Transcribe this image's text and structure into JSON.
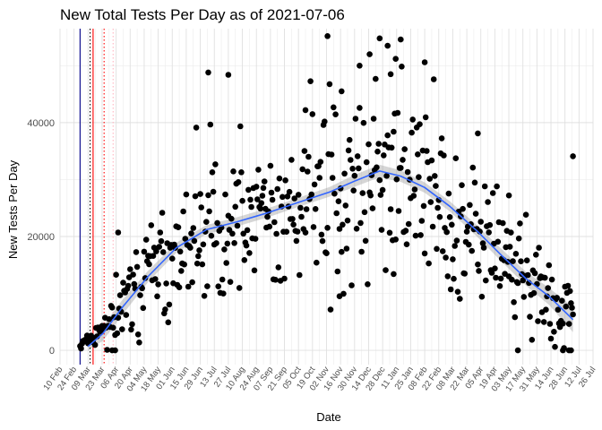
{
  "chart_data": {
    "type": "scatter",
    "title": "New Total Tests Per Day as of 2021-07-06",
    "xlabel": "Date",
    "ylabel": "New Tests Per Day",
    "xlim": [
      "2020-02-10",
      "2021-07-26"
    ],
    "ylim": [
      -2500,
      56500
    ],
    "y_ticks": [
      0,
      20000,
      40000
    ],
    "y_tick_labels": [
      "0",
      "20000",
      "40000"
    ],
    "x_tick_labels": [
      "10 Feb",
      "24 Feb",
      "09 Mar",
      "23 Mar",
      "06 Apr",
      "20 Apr",
      "04 May",
      "18 May",
      "01 Jun",
      "15 Jun",
      "29 Jun",
      "13 Jul",
      "27 Jul",
      "10 Aug",
      "24 Aug",
      "07 Sep",
      "21 Sep",
      "05 Oct",
      "19 Oct",
      "02 Nov",
      "16 Nov",
      "30 Nov",
      "14 Dec",
      "28 Dec",
      "11 Jan",
      "25 Jan",
      "08 Feb",
      "22 Feb",
      "08 Mar",
      "22 Mar",
      "05 Apr",
      "19 Apr",
      "03 May",
      "17 May",
      "31 May",
      "14 Jun",
      "28 Jun",
      "12 Jul",
      "26 Jul"
    ],
    "x_tick_dates": [
      "2020-02-10",
      "2020-02-24",
      "2020-03-09",
      "2020-03-23",
      "2020-04-06",
      "2020-04-20",
      "2020-05-04",
      "2020-05-18",
      "2020-06-01",
      "2020-06-15",
      "2020-06-29",
      "2020-07-13",
      "2020-07-27",
      "2020-08-10",
      "2020-08-24",
      "2020-09-07",
      "2020-09-21",
      "2020-10-05",
      "2020-10-19",
      "2020-11-02",
      "2020-11-16",
      "2020-11-30",
      "2020-12-14",
      "2020-12-28",
      "2021-01-11",
      "2021-01-25",
      "2021-02-08",
      "2021-02-22",
      "2021-03-08",
      "2021-03-22",
      "2021-04-05",
      "2021-04-19",
      "2021-05-03",
      "2021-05-17",
      "2021-05-31",
      "2021-06-14",
      "2021-06-28",
      "2021-07-12",
      "2021-07-26"
    ],
    "grid": true,
    "legend": "none",
    "vlines": [
      {
        "date": "2020-03-01",
        "color": "#00008b",
        "style": "solid"
      },
      {
        "date": "2020-03-11",
        "color": "#000000",
        "style": "dotted"
      },
      {
        "date": "2020-03-14",
        "color": "#ff0000",
        "style": "solid"
      },
      {
        "date": "2020-03-25",
        "color": "#ff0000",
        "style": "dotted"
      },
      {
        "date": "2020-04-03",
        "color": "#ffb6c1",
        "style": "dotted"
      }
    ],
    "trend": {
      "color": "#3366ff",
      "band_color": "#999999",
      "points": [
        {
          "x": "2020-03-09",
          "y": 700,
          "lo": 0,
          "hi": 1800
        },
        {
          "x": "2020-03-24",
          "y": 3000,
          "lo": 1700,
          "hi": 4400
        },
        {
          "x": "2020-04-12",
          "y": 7500,
          "lo": 6200,
          "hi": 8800
        },
        {
          "x": "2020-05-08",
          "y": 13000,
          "lo": 12000,
          "hi": 14000
        },
        {
          "x": "2020-06-05",
          "y": 18000,
          "lo": 17100,
          "hi": 18900
        },
        {
          "x": "2020-07-05",
          "y": 21200,
          "lo": 20400,
          "hi": 22000
        },
        {
          "x": "2020-08-05",
          "y": 22600,
          "lo": 21800,
          "hi": 23400
        },
        {
          "x": "2020-09-05",
          "y": 24200,
          "lo": 23400,
          "hi": 25000
        },
        {
          "x": "2020-10-05",
          "y": 26000,
          "lo": 25200,
          "hi": 26800
        },
        {
          "x": "2020-11-05",
          "y": 27800,
          "lo": 27000,
          "hi": 28700
        },
        {
          "x": "2020-12-01",
          "y": 29800,
          "lo": 28800,
          "hi": 30900
        },
        {
          "x": "2020-12-25",
          "y": 31500,
          "lo": 30400,
          "hi": 32600
        },
        {
          "x": "2021-01-15",
          "y": 30600,
          "lo": 29600,
          "hi": 31600
        },
        {
          "x": "2021-02-08",
          "y": 28600,
          "lo": 27700,
          "hi": 29500
        },
        {
          "x": "2021-03-05",
          "y": 25300,
          "lo": 24400,
          "hi": 26200
        },
        {
          "x": "2021-04-01",
          "y": 21000,
          "lo": 20000,
          "hi": 22000
        },
        {
          "x": "2021-04-25",
          "y": 16800,
          "lo": 15700,
          "hi": 17900
        },
        {
          "x": "2021-05-20",
          "y": 12600,
          "lo": 11400,
          "hi": 13800
        },
        {
          "x": "2021-06-12",
          "y": 9500,
          "lo": 8000,
          "hi": 11000
        },
        {
          "x": "2021-07-06",
          "y": 5400,
          "lo": 3200,
          "hi": 7600
        }
      ]
    },
    "scatter_trend": [
      {
        "x": "2020-03-01",
        "y": 900
      },
      {
        "x": "2020-03-16",
        "y": 2500
      },
      {
        "x": "2020-04-01",
        "y": 5500
      },
      {
        "x": "2020-04-20",
        "y": 10000
      },
      {
        "x": "2020-05-20",
        "y": 15500
      },
      {
        "x": "2020-06-20",
        "y": 20000
      },
      {
        "x": "2020-07-20",
        "y": 22300
      },
      {
        "x": "2020-08-20",
        "y": 23500
      },
      {
        "x": "2020-09-20",
        "y": 25200
      },
      {
        "x": "2020-10-20",
        "y": 27000
      },
      {
        "x": "2020-11-20",
        "y": 29000
      },
      {
        "x": "2020-12-20",
        "y": 30500
      },
      {
        "x": "2021-01-15",
        "y": 30000
      },
      {
        "x": "2021-02-15",
        "y": 27000
      },
      {
        "x": "2021-03-15",
        "y": 23000
      },
      {
        "x": "2021-04-15",
        "y": 18000
      },
      {
        "x": "2021-05-15",
        "y": 13000
      },
      {
        "x": "2021-06-15",
        "y": 9500
      },
      {
        "x": "2021-07-06",
        "y": 7000
      }
    ],
    "spread_profile": [
      {
        "x": "2020-03-01",
        "s": 500
      },
      {
        "x": "2020-03-20",
        "s": 1200
      },
      {
        "x": "2020-04-20",
        "s": 3500
      },
      {
        "x": "2020-06-15",
        "s": 6000
      },
      {
        "x": "2020-09-01",
        "s": 6500
      },
      {
        "x": "2020-11-01",
        "s": 7500
      },
      {
        "x": "2020-12-20",
        "s": 9000
      },
      {
        "x": "2021-02-01",
        "s": 8000
      },
      {
        "x": "2021-04-01",
        "s": 5500
      },
      {
        "x": "2021-06-01",
        "s": 4500
      },
      {
        "x": "2021-07-06",
        "s": 4500
      }
    ],
    "scatter_start": "2020-03-01",
    "scatter_end": "2021-07-06",
    "scatter_seed": 20210706,
    "highlight_points": [
      {
        "x": "2020-04-02",
        "y": 0
      },
      {
        "x": "2020-04-05",
        "y": 0
      },
      {
        "x": "2020-04-08",
        "y": 20700
      },
      {
        "x": "2020-07-07",
        "y": 48800
      },
      {
        "x": "2020-07-27",
        "y": 48400
      },
      {
        "x": "2020-10-12",
        "y": 42200
      },
      {
        "x": "2020-11-03",
        "y": 55200
      },
      {
        "x": "2020-11-15",
        "y": 9500
      },
      {
        "x": "2020-11-17",
        "y": 45500
      },
      {
        "x": "2020-12-05",
        "y": 50000
      },
      {
        "x": "2020-12-15",
        "y": 52000
      },
      {
        "x": "2020-12-25",
        "y": 54800
      },
      {
        "x": "2021-01-02",
        "y": 53500
      },
      {
        "x": "2021-01-05",
        "y": 48500
      },
      {
        "x": "2021-01-08",
        "y": 13400
      },
      {
        "x": "2021-01-10",
        "y": 51200
      },
      {
        "x": "2021-01-15",
        "y": 54600
      },
      {
        "x": "2021-02-08",
        "y": 50600
      },
      {
        "x": "2021-04-02",
        "y": 38100
      },
      {
        "x": "2021-05-03",
        "y": 27200
      },
      {
        "x": "2021-05-12",
        "y": 0
      },
      {
        "x": "2021-06-26",
        "y": 0
      },
      {
        "x": "2021-07-02",
        "y": 0
      },
      {
        "x": "2021-07-04",
        "y": 0
      },
      {
        "x": "2021-07-06",
        "y": 34100
      }
    ]
  }
}
